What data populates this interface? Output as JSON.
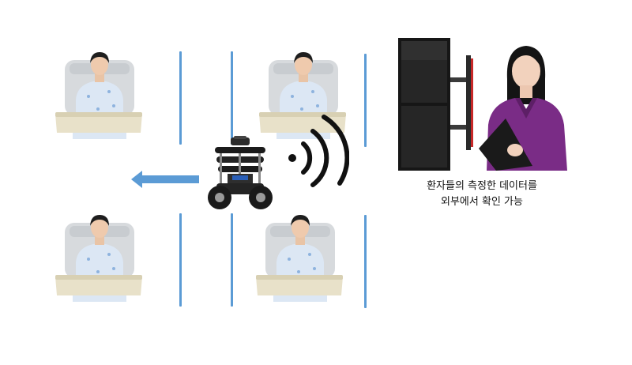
{
  "caption": {
    "line1": "환자들의 측정한 데이터를",
    "line2": "외부에서 확인 가능"
  },
  "colors": {
    "divider": "#5b9bd5",
    "arrow": "#5b9bd5",
    "scrubs": "#7a2c86",
    "table": "#e8e1c9",
    "wifi": "#111111"
  },
  "icons": {
    "patient": "patient-in-bed-icon",
    "robot": "mobile-robot-icon",
    "signal": "wifi-signal-icon",
    "arrow": "left-arrow-icon",
    "monitor": "dual-monitor-icon",
    "nurse": "nurse-icon"
  }
}
